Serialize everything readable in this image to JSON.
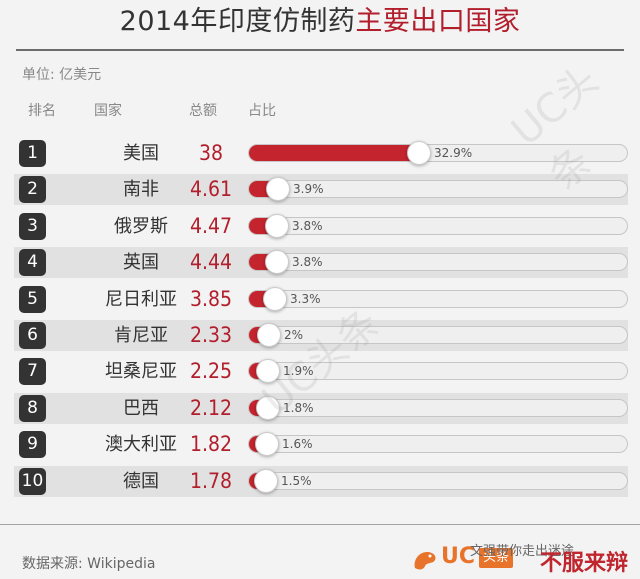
{
  "title_main": "2014年印度仿制药",
  "title_highlight": "主要出口国家",
  "unit": "单位: 亿美元",
  "headers": {
    "rank": "排名",
    "country": "国家",
    "total": "总额",
    "share": "占比"
  },
  "source": "数据来源: Wikipedia",
  "logos": {
    "uc_text": "UC",
    "uc_badge": "头条",
    "brand": "不服来辩",
    "wechat": "文强带你走出迷途"
  },
  "watermark": "UC头条",
  "colors": {
    "accent": "#b21e2c",
    "bar_fill": "#c4242e",
    "rank_badge": "#333333"
  },
  "chart_data": {
    "type": "bar",
    "title": "2014年印度仿制药主要出口国家",
    "unit": "亿美元",
    "ranks": [
      "1",
      "2",
      "3",
      "4",
      "5",
      "6",
      "7",
      "8",
      "9",
      "10"
    ],
    "categories": [
      "美国",
      "南非",
      "俄罗斯",
      "英国",
      "尼日利亚",
      "肯尼亚",
      "坦桑尼亚",
      "巴西",
      "澳大利亚",
      "德国"
    ],
    "values": [
      "38",
      "4.61",
      "4.47",
      "4.44",
      "3.85",
      "2.33",
      "2.25",
      "2.12",
      "1.82",
      "1.78"
    ],
    "shares": [
      32.9,
      3.9,
      3.8,
      3.8,
      3.3,
      2,
      1.9,
      1.8,
      1.6,
      1.5
    ],
    "share_labels": [
      "32.9%",
      "3.9%",
      "3.8%",
      "3.8%",
      "3.3%",
      "2%",
      "1.9%",
      "1.8%",
      "1.6%",
      "1.5%"
    ],
    "share_max": 100
  }
}
